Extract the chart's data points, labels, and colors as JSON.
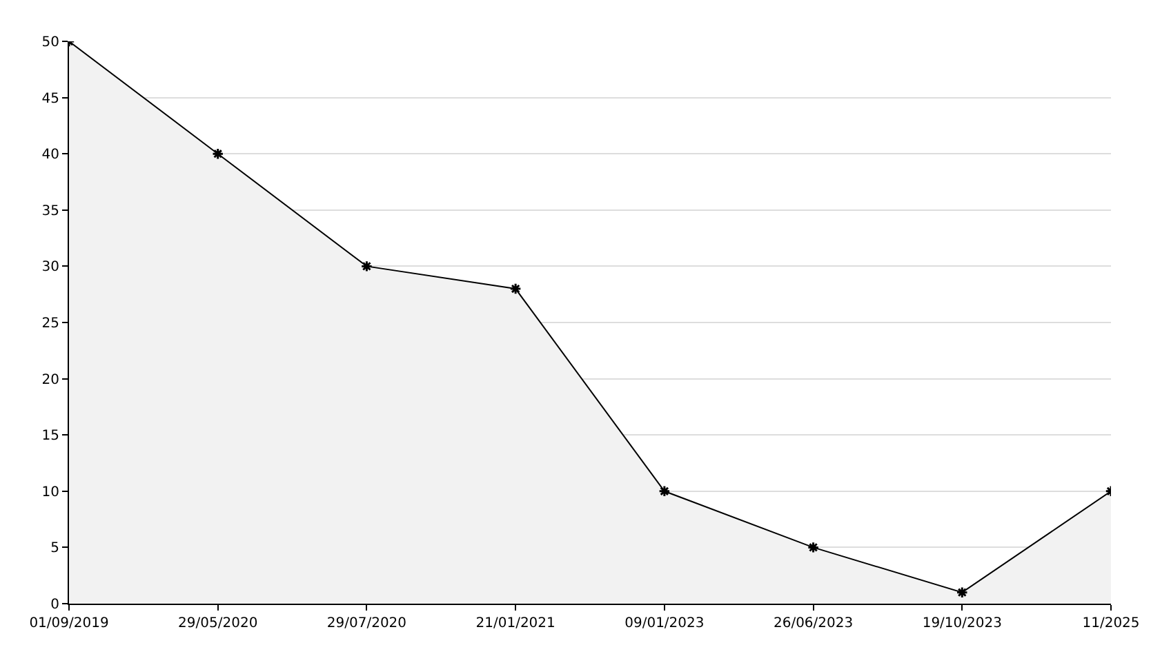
{
  "chart_data": {
    "type": "area",
    "categories": [
      "01/09/2019",
      "29/05/2020",
      "29/07/2020",
      "21/01/2021",
      "09/01/2023",
      "26/06/2023",
      "19/10/2023",
      "11/2025"
    ],
    "values": [
      50,
      40,
      30,
      28,
      10,
      5,
      1,
      10
    ],
    "color": "#000000",
    "ylim": [
      0,
      50
    ],
    "yticks": [
      0,
      5,
      10,
      15,
      20,
      25,
      30,
      35,
      40,
      45,
      50
    ],
    "grid": "y",
    "marker": "cross",
    "line_style": "solid",
    "legend": false
  }
}
